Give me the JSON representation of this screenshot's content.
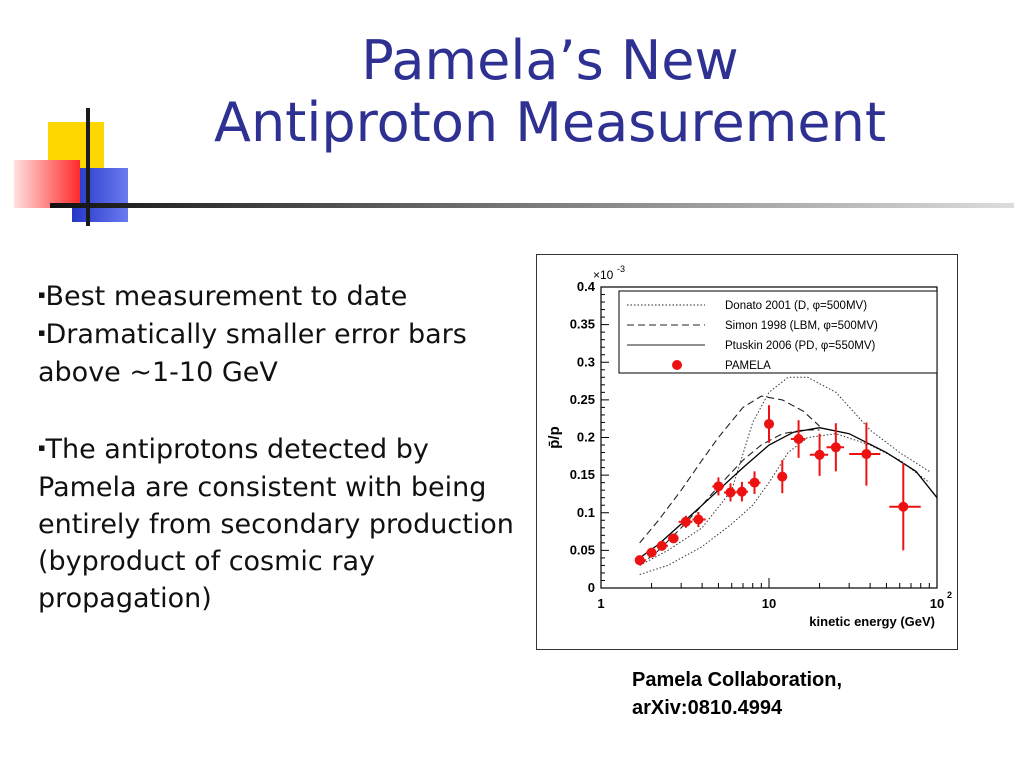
{
  "slide": {
    "title_line1": "Pamela’s New",
    "title_line2": "Antiproton Measurement",
    "bullets": [
      "Best measurement to date",
      "Dramatically smaller error bars above ~1-10 GeV",
      "The antiprotons detected by Pamela are consistent with being entirely from secondary production (byproduct of cosmic ray propagation)"
    ],
    "bullet_marker": "▪",
    "caption_line1": "Pamela Collaboration,",
    "caption_line2": "arXiv:0810.4994"
  },
  "colors": {
    "title": "#2e3192",
    "deco_yellow": "#ffd700",
    "deco_blue": "#2e3fd6",
    "deco_red": "#ff2a2a",
    "pamela_points": "#ee1111"
  },
  "chart_data": {
    "type": "scatter",
    "title": "",
    "xlabel": "kinetic energy (GeV)",
    "ylabel": "p̄/p",
    "x_scale": "log",
    "xlim": [
      1,
      100
    ],
    "ylim": [
      0,
      0.4
    ],
    "y_multiplier_label": "×10",
    "y_multiplier_exp": "-3",
    "x_tick_labels": [
      {
        "value": 1,
        "base": "1",
        "exp": ""
      },
      {
        "value": 10,
        "base": "10",
        "exp": ""
      },
      {
        "value": 100,
        "base": "10",
        "exp": "2"
      }
    ],
    "y_tick_labels": [
      "0",
      "0.05",
      "0.1",
      "0.15",
      "0.2",
      "0.25",
      "0.3",
      "0.35",
      "0.4"
    ],
    "legend_position": "top",
    "legend": [
      {
        "label": "Donato 2001 (D, φ=500MV)",
        "style": "dotted"
      },
      {
        "label": "Simon 1998 (LBM, φ=500MV)",
        "style": "dashed"
      },
      {
        "label": "Ptuskin 2006 (PD, φ=550MV)",
        "style": "solid"
      },
      {
        "label": "PAMELA",
        "style": "marker"
      }
    ],
    "series": [
      {
        "name": "PAMELA",
        "points": [
          {
            "x": 1.7,
            "y": 0.037,
            "err": 0.005,
            "xerr": [
              1.6,
              1.85
            ]
          },
          {
            "x": 2.0,
            "y": 0.047,
            "err": 0.004,
            "xerr": [
              1.85,
              2.15
            ]
          },
          {
            "x": 2.3,
            "y": 0.056,
            "err": 0.005,
            "xerr": [
              2.15,
              2.5
            ]
          },
          {
            "x": 2.7,
            "y": 0.066,
            "err": 0.006,
            "xerr": [
              2.5,
              2.9
            ]
          },
          {
            "x": 3.2,
            "y": 0.088,
            "err": 0.008,
            "xerr": [
              2.9,
              3.5
            ]
          },
          {
            "x": 3.8,
            "y": 0.091,
            "err": 0.01,
            "xerr": [
              3.5,
              4.2
            ]
          },
          {
            "x": 5.0,
            "y": 0.135,
            "err": 0.012,
            "xerr": [
              4.6,
              5.4
            ]
          },
          {
            "x": 5.9,
            "y": 0.127,
            "err": 0.012,
            "xerr": [
              5.4,
              6.4
            ]
          },
          {
            "x": 6.9,
            "y": 0.128,
            "err": 0.013,
            "xerr": [
              6.4,
              7.5
            ]
          },
          {
            "x": 8.2,
            "y": 0.14,
            "err": 0.015,
            "xerr": [
              7.5,
              8.9
            ]
          },
          {
            "x": 10.0,
            "y": 0.218,
            "err": 0.025,
            "xerr": [
              9.4,
              10.7
            ]
          },
          {
            "x": 12.0,
            "y": 0.148,
            "err": 0.022,
            "xerr": [
              11.2,
              12.8
            ]
          },
          {
            "x": 15.0,
            "y": 0.198,
            "err": 0.025,
            "xerr": [
              13.5,
              16.5
            ]
          },
          {
            "x": 20.0,
            "y": 0.177,
            "err": 0.028,
            "xerr": [
              17.5,
              22.5
            ]
          },
          {
            "x": 25.0,
            "y": 0.187,
            "err": 0.032,
            "xerr": [
              22.0,
              28.0
            ]
          },
          {
            "x": 38.0,
            "y": 0.178,
            "err": 0.042,
            "xerr": [
              30.0,
              46.0
            ]
          },
          {
            "x": 63.0,
            "y": 0.108,
            "err": 0.058,
            "xerr": [
              52.0,
              80.0
            ]
          }
        ]
      },
      {
        "name": "Donato 2001 (D, φ=500MV)",
        "style": "dotted-band",
        "upper": [
          [
            1.7,
            0.03
          ],
          [
            2.5,
            0.05
          ],
          [
            4,
            0.08
          ],
          [
            6,
            0.13
          ],
          [
            8,
            0.22
          ],
          [
            10,
            0.26
          ],
          [
            13,
            0.28
          ],
          [
            17,
            0.28
          ],
          [
            25,
            0.26
          ],
          [
            40,
            0.21
          ],
          [
            60,
            0.18
          ],
          [
            90,
            0.155
          ]
        ],
        "lower": [
          [
            1.7,
            0.018
          ],
          [
            2.5,
            0.03
          ],
          [
            4,
            0.055
          ],
          [
            6,
            0.085
          ],
          [
            8,
            0.11
          ],
          [
            10,
            0.14
          ],
          [
            13,
            0.18
          ],
          [
            17,
            0.2
          ],
          [
            25,
            0.205
          ],
          [
            40,
            0.19
          ],
          [
            60,
            0.17
          ],
          [
            90,
            0.14
          ]
        ]
      },
      {
        "name": "Simon 1998 (LBM, φ=500MV)",
        "style": "dashed",
        "upper": [
          [
            1.7,
            0.06
          ],
          [
            2.2,
            0.09
          ],
          [
            3,
            0.13
          ],
          [
            4,
            0.17
          ],
          [
            5,
            0.2
          ],
          [
            7,
            0.24
          ],
          [
            9,
            0.255
          ],
          [
            12,
            0.25
          ],
          [
            16,
            0.235
          ],
          [
            20,
            0.215
          ]
        ],
        "lower": [
          [
            1.7,
            0.03
          ],
          [
            2.2,
            0.05
          ],
          [
            3,
            0.08
          ],
          [
            4,
            0.11
          ],
          [
            5,
            0.135
          ],
          [
            7,
            0.17
          ],
          [
            9,
            0.19
          ],
          [
            12,
            0.205
          ],
          [
            16,
            0.21
          ],
          [
            20,
            0.21
          ]
        ]
      },
      {
        "name": "Ptuskin 2006 (PD, φ=550MV)",
        "style": "solid",
        "points": [
          [
            1.7,
            0.04
          ],
          [
            2.2,
            0.058
          ],
          [
            3,
            0.085
          ],
          [
            4,
            0.11
          ],
          [
            5,
            0.13
          ],
          [
            7,
            0.16
          ],
          [
            10,
            0.19
          ],
          [
            14,
            0.207
          ],
          [
            20,
            0.213
          ],
          [
            30,
            0.205
          ],
          [
            50,
            0.18
          ],
          [
            75,
            0.155
          ],
          [
            100,
            0.12
          ]
        ]
      }
    ]
  }
}
